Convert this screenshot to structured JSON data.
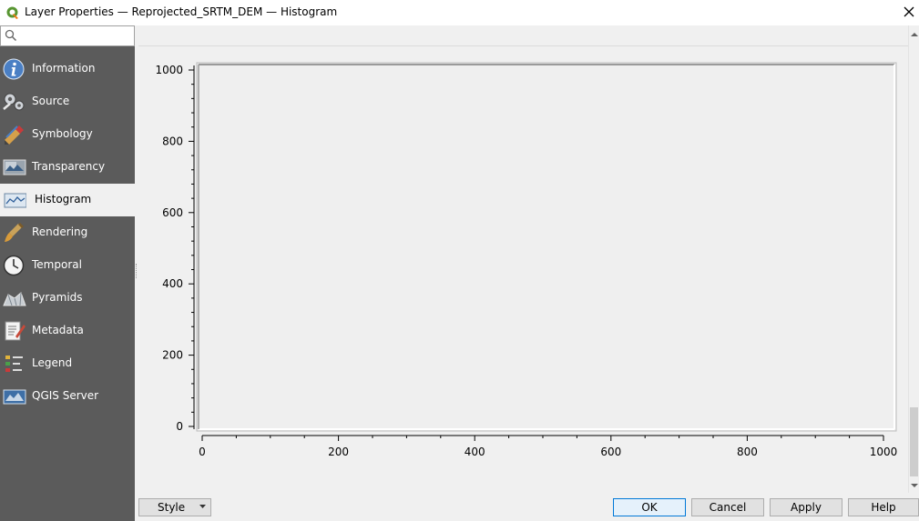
{
  "window": {
    "title": "Layer Properties — Reprojected_SRTM_DEM — Histogram",
    "app_icon": "qgis-logo-icon",
    "close_icon": "close-icon"
  },
  "search": {
    "value": "",
    "placeholder": "",
    "icon": "search-icon"
  },
  "sidebar": {
    "items": [
      {
        "label": "Information",
        "icon": "information-icon"
      },
      {
        "label": "Source",
        "icon": "source-icon"
      },
      {
        "label": "Symbology",
        "icon": "symbology-icon"
      },
      {
        "label": "Transparency",
        "icon": "transparency-icon"
      },
      {
        "label": "Histogram",
        "icon": "histogram-icon",
        "active": true
      },
      {
        "label": "Rendering",
        "icon": "rendering-icon"
      },
      {
        "label": "Temporal",
        "icon": "temporal-icon"
      },
      {
        "label": "Pyramids",
        "icon": "pyramids-icon"
      },
      {
        "label": "Metadata",
        "icon": "metadata-icon"
      },
      {
        "label": "Legend",
        "icon": "legend-icon"
      },
      {
        "label": "QGIS Server",
        "icon": "qgis-server-icon"
      }
    ]
  },
  "chart_data": {
    "type": "bar",
    "title": "",
    "xlabel": "",
    "ylabel": "",
    "xlim": [
      0,
      1000
    ],
    "ylim": [
      0,
      1000
    ],
    "x_ticks": [
      "0",
      "200",
      "400",
      "600",
      "800",
      "1000"
    ],
    "y_ticks": [
      "0",
      "200",
      "400",
      "600",
      "800",
      "1000"
    ],
    "series": [],
    "grid": false,
    "legend": "none"
  },
  "buttons": {
    "style": "Style",
    "ok": "OK",
    "cancel": "Cancel",
    "apply": "Apply",
    "help": "Help"
  }
}
